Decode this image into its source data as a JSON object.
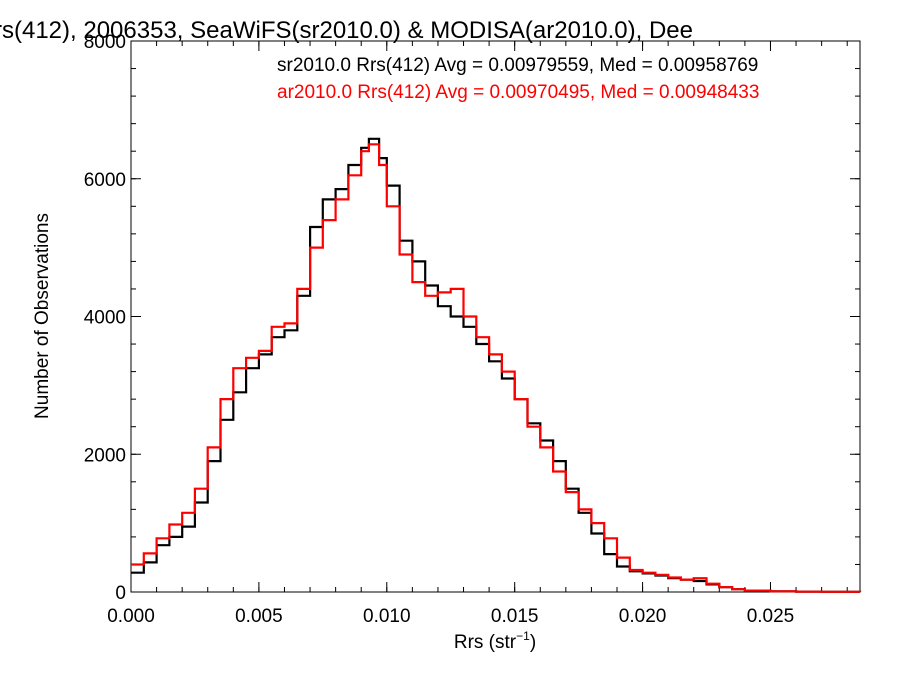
{
  "chart_data": {
    "type": "line",
    "title": "rs(412), 2006353, SeaWiFS(sr2010.0) & MODISA(ar2010.0), Dee",
    "xlabel": "Rrs (str",
    "xlabel_sup": "−1",
    "xlabel_close": ")",
    "ylabel": "Number of Observations",
    "xlim": [
      0.0,
      0.0285
    ],
    "ylim": [
      0,
      8000
    ],
    "xticks": [
      "0.000",
      "0.005",
      "0.010",
      "0.015",
      "0.020",
      "0.025"
    ],
    "yticks": [
      "0",
      "2000",
      "4000",
      "6000",
      "8000"
    ],
    "grid": false,
    "legend": "top-right",
    "series": [
      {
        "name": "sr2010.0 Rrs(412) Avg = 0.00979559, Med = 0.00958769",
        "color": "#000000",
        "points": [
          [
            0.0,
            280
          ],
          [
            0.0005,
            430
          ],
          [
            0.001,
            680
          ],
          [
            0.0015,
            800
          ],
          [
            0.002,
            950
          ],
          [
            0.0025,
            1300
          ],
          [
            0.003,
            1900
          ],
          [
            0.0035,
            2500
          ],
          [
            0.004,
            2900
          ],
          [
            0.0045,
            3250
          ],
          [
            0.005,
            3450
          ],
          [
            0.0055,
            3700
          ],
          [
            0.006,
            3800
          ],
          [
            0.0065,
            4300
          ],
          [
            0.007,
            5300
          ],
          [
            0.0075,
            5700
          ],
          [
            0.008,
            5850
          ],
          [
            0.0085,
            6200
          ],
          [
            0.009,
            6450
          ],
          [
            0.0093,
            6580
          ],
          [
            0.0097,
            6300
          ],
          [
            0.01,
            5900
          ],
          [
            0.0105,
            5100
          ],
          [
            0.011,
            4800
          ],
          [
            0.0115,
            4450
          ],
          [
            0.012,
            4150
          ],
          [
            0.0125,
            4000
          ],
          [
            0.013,
            3850
          ],
          [
            0.0135,
            3600
          ],
          [
            0.014,
            3350
          ],
          [
            0.0145,
            3100
          ],
          [
            0.015,
            2800
          ],
          [
            0.0155,
            2450
          ],
          [
            0.016,
            2200
          ],
          [
            0.0165,
            1900
          ],
          [
            0.017,
            1500
          ],
          [
            0.0175,
            1150
          ],
          [
            0.018,
            850
          ],
          [
            0.0185,
            550
          ],
          [
            0.019,
            370
          ],
          [
            0.0195,
            300
          ],
          [
            0.02,
            270
          ],
          [
            0.0205,
            240
          ],
          [
            0.021,
            200
          ],
          [
            0.0215,
            180
          ],
          [
            0.022,
            160
          ],
          [
            0.0225,
            110
          ],
          [
            0.023,
            70
          ],
          [
            0.0235,
            40
          ],
          [
            0.024,
            20
          ],
          [
            0.025,
            10
          ],
          [
            0.026,
            5
          ],
          [
            0.027,
            3
          ],
          [
            0.0285,
            2
          ]
        ]
      },
      {
        "name": "ar2010.0 Rrs(412) Avg = 0.00970495, Med = 0.00948433",
        "color": "#ff0000",
        "points": [
          [
            0.0,
            400
          ],
          [
            0.0005,
            560
          ],
          [
            0.001,
            780
          ],
          [
            0.0015,
            980
          ],
          [
            0.002,
            1150
          ],
          [
            0.0025,
            1500
          ],
          [
            0.003,
            2100
          ],
          [
            0.0035,
            2800
          ],
          [
            0.004,
            3250
          ],
          [
            0.0045,
            3400
          ],
          [
            0.005,
            3500
          ],
          [
            0.0055,
            3850
          ],
          [
            0.006,
            3900
          ],
          [
            0.0065,
            4400
          ],
          [
            0.007,
            5000
          ],
          [
            0.0075,
            5400
          ],
          [
            0.008,
            5700
          ],
          [
            0.0085,
            6050
          ],
          [
            0.009,
            6400
          ],
          [
            0.0093,
            6500
          ],
          [
            0.0097,
            6200
          ],
          [
            0.01,
            5600
          ],
          [
            0.0105,
            4900
          ],
          [
            0.011,
            4500
          ],
          [
            0.0115,
            4300
          ],
          [
            0.012,
            4350
          ],
          [
            0.0125,
            4400
          ],
          [
            0.013,
            4000
          ],
          [
            0.0135,
            3700
          ],
          [
            0.014,
            3450
          ],
          [
            0.0145,
            3200
          ],
          [
            0.015,
            2800
          ],
          [
            0.0155,
            2400
          ],
          [
            0.016,
            2100
          ],
          [
            0.0165,
            1750
          ],
          [
            0.017,
            1450
          ],
          [
            0.0175,
            1200
          ],
          [
            0.018,
            1000
          ],
          [
            0.0185,
            780
          ],
          [
            0.019,
            500
          ],
          [
            0.0195,
            320
          ],
          [
            0.02,
            280
          ],
          [
            0.0205,
            250
          ],
          [
            0.021,
            210
          ],
          [
            0.0215,
            180
          ],
          [
            0.022,
            200
          ],
          [
            0.0225,
            120
          ],
          [
            0.023,
            70
          ],
          [
            0.0235,
            40
          ],
          [
            0.024,
            20
          ],
          [
            0.025,
            10
          ],
          [
            0.026,
            5
          ],
          [
            0.027,
            3
          ],
          [
            0.0285,
            2
          ]
        ]
      }
    ]
  }
}
